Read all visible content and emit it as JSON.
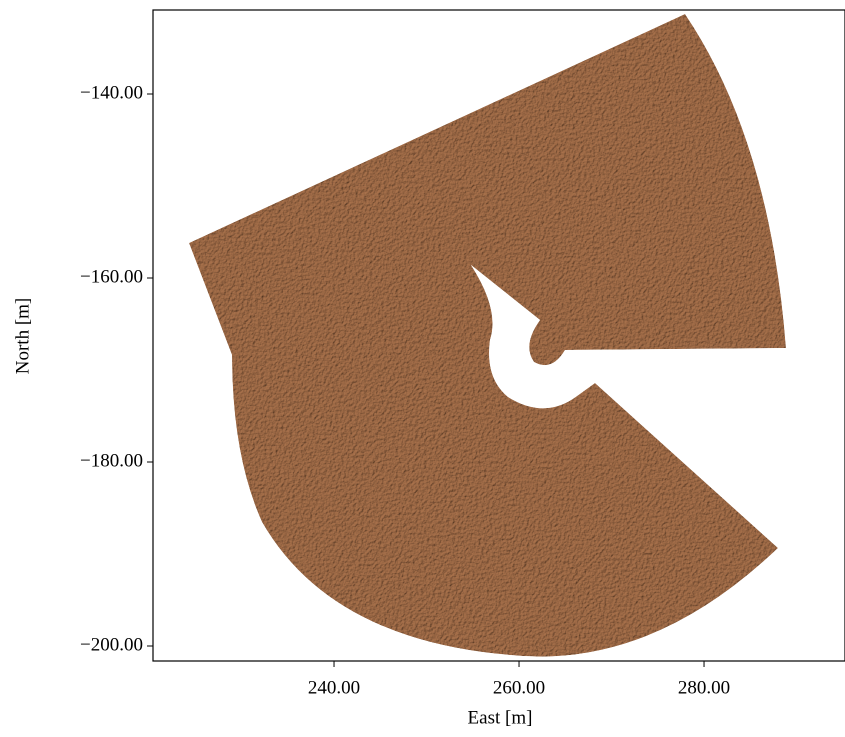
{
  "chart_data": {
    "type": "map",
    "xlabel": "East [m]",
    "ylabel": "North [m]",
    "xlim": [
      220.43,
      295.24
    ],
    "ylim": [
      -201.63,
      -130.87
    ],
    "xticks": [
      {
        "value": 240,
        "label": "240.00"
      },
      {
        "value": 260,
        "label": "260.00"
      },
      {
        "value": 280,
        "label": "280.00"
      }
    ],
    "yticks": [
      {
        "value": -200,
        "label": "−200.00"
      },
      {
        "value": -180,
        "label": "−180.00"
      },
      {
        "value": -160,
        "label": "−160.00"
      },
      {
        "value": -140,
        "label": "−140.00"
      }
    ],
    "color": "#a8714b"
  }
}
